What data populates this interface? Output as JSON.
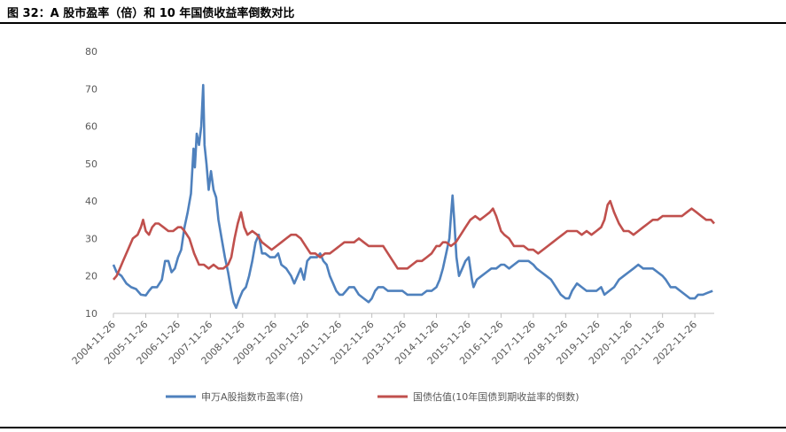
{
  "figure": {
    "title": "图 32：A 股市盈率（倍）和 10 年国债收益率倒数对比"
  },
  "chart_data": {
    "type": "line",
    "ylim": [
      10,
      80
    ],
    "yticks": [
      10,
      20,
      30,
      40,
      50,
      60,
      70,
      80
    ],
    "x_tick_labels": [
      "2004-11-26",
      "2005-11-26",
      "2006-11-26",
      "2007-11-26",
      "2008-11-26",
      "2009-11-26",
      "2010-11-26",
      "2011-11-26",
      "2012-11-26",
      "2013-11-26",
      "2014-11-26",
      "2015-11-26",
      "2016-11-26",
      "2017-11-26",
      "2018-11-26",
      "2019-11-26",
      "2020-11-26",
      "2021-11-26",
      "2022-11-26"
    ],
    "grid": false,
    "legend_position": "bottom",
    "series": [
      {
        "name": "申万A股指数市盈率(倍)",
        "color": "#4F81BD",
        "points": [
          [
            2004.9,
            23
          ],
          [
            2005.0,
            21
          ],
          [
            2005.15,
            20
          ],
          [
            2005.3,
            18
          ],
          [
            2005.45,
            17
          ],
          [
            2005.6,
            16.5
          ],
          [
            2005.75,
            15
          ],
          [
            2005.9,
            14.8
          ],
          [
            2006.0,
            16
          ],
          [
            2006.1,
            17
          ],
          [
            2006.25,
            17
          ],
          [
            2006.4,
            19
          ],
          [
            2006.5,
            24
          ],
          [
            2006.6,
            24
          ],
          [
            2006.7,
            21
          ],
          [
            2006.8,
            22
          ],
          [
            2006.9,
            25
          ],
          [
            2007.0,
            27
          ],
          [
            2007.1,
            33
          ],
          [
            2007.2,
            37
          ],
          [
            2007.3,
            42
          ],
          [
            2007.38,
            54
          ],
          [
            2007.42,
            49
          ],
          [
            2007.48,
            58
          ],
          [
            2007.55,
            55
          ],
          [
            2007.62,
            60
          ],
          [
            2007.68,
            71
          ],
          [
            2007.72,
            55
          ],
          [
            2007.78,
            50
          ],
          [
            2007.85,
            43
          ],
          [
            2007.92,
            48
          ],
          [
            2008.0,
            43
          ],
          [
            2008.08,
            41
          ],
          [
            2008.15,
            35
          ],
          [
            2008.25,
            30
          ],
          [
            2008.35,
            25
          ],
          [
            2008.45,
            21
          ],
          [
            2008.55,
            16
          ],
          [
            2008.62,
            13
          ],
          [
            2008.7,
            11.5
          ],
          [
            2008.8,
            14
          ],
          [
            2008.9,
            16
          ],
          [
            2009.0,
            17
          ],
          [
            2009.1,
            20
          ],
          [
            2009.2,
            24
          ],
          [
            2009.3,
            29
          ],
          [
            2009.4,
            31
          ],
          [
            2009.5,
            26
          ],
          [
            2009.6,
            26
          ],
          [
            2009.75,
            25
          ],
          [
            2009.9,
            25
          ],
          [
            2010.0,
            26
          ],
          [
            2010.1,
            23
          ],
          [
            2010.25,
            22
          ],
          [
            2010.4,
            20
          ],
          [
            2010.5,
            18
          ],
          [
            2010.6,
            20
          ],
          [
            2010.7,
            22
          ],
          [
            2010.8,
            19
          ],
          [
            2010.9,
            24
          ],
          [
            2011.0,
            25
          ],
          [
            2011.1,
            25
          ],
          [
            2011.2,
            25
          ],
          [
            2011.3,
            26
          ],
          [
            2011.4,
            24
          ],
          [
            2011.5,
            23
          ],
          [
            2011.6,
            20
          ],
          [
            2011.7,
            18
          ],
          [
            2011.8,
            16
          ],
          [
            2011.9,
            15
          ],
          [
            2012.0,
            15
          ],
          [
            2012.1,
            16
          ],
          [
            2012.2,
            17
          ],
          [
            2012.35,
            17
          ],
          [
            2012.5,
            15
          ],
          [
            2012.65,
            14
          ],
          [
            2012.8,
            13
          ],
          [
            2012.9,
            14
          ],
          [
            2013.0,
            16
          ],
          [
            2013.1,
            17
          ],
          [
            2013.25,
            17
          ],
          [
            2013.4,
            16
          ],
          [
            2013.55,
            16
          ],
          [
            2013.7,
            16
          ],
          [
            2013.85,
            16
          ],
          [
            2014.0,
            15
          ],
          [
            2014.15,
            15
          ],
          [
            2014.3,
            15
          ],
          [
            2014.45,
            15
          ],
          [
            2014.6,
            16
          ],
          [
            2014.75,
            16
          ],
          [
            2014.9,
            17
          ],
          [
            2015.0,
            19
          ],
          [
            2015.1,
            22
          ],
          [
            2015.2,
            26
          ],
          [
            2015.3,
            30
          ],
          [
            2015.35,
            36
          ],
          [
            2015.4,
            41.5
          ],
          [
            2015.45,
            35
          ],
          [
            2015.52,
            25
          ],
          [
            2015.6,
            20
          ],
          [
            2015.7,
            22
          ],
          [
            2015.8,
            24
          ],
          [
            2015.9,
            25
          ],
          [
            2016.0,
            19
          ],
          [
            2016.05,
            17
          ],
          [
            2016.15,
            19
          ],
          [
            2016.3,
            20
          ],
          [
            2016.45,
            21
          ],
          [
            2016.6,
            22
          ],
          [
            2016.75,
            22
          ],
          [
            2016.9,
            23
          ],
          [
            2017.0,
            23
          ],
          [
            2017.15,
            22
          ],
          [
            2017.3,
            23
          ],
          [
            2017.45,
            24
          ],
          [
            2017.6,
            24
          ],
          [
            2017.75,
            24
          ],
          [
            2017.9,
            23
          ],
          [
            2018.0,
            22
          ],
          [
            2018.15,
            21
          ],
          [
            2018.3,
            20
          ],
          [
            2018.45,
            19
          ],
          [
            2018.6,
            17
          ],
          [
            2018.75,
            15
          ],
          [
            2018.9,
            14
          ],
          [
            2019.0,
            14
          ],
          [
            2019.1,
            16
          ],
          [
            2019.25,
            18
          ],
          [
            2019.4,
            17
          ],
          [
            2019.55,
            16
          ],
          [
            2019.7,
            16
          ],
          [
            2019.85,
            16
          ],
          [
            2020.0,
            17
          ],
          [
            2020.1,
            15
          ],
          [
            2020.25,
            16
          ],
          [
            2020.4,
            17
          ],
          [
            2020.55,
            19
          ],
          [
            2020.7,
            20
          ],
          [
            2020.85,
            21
          ],
          [
            2021.0,
            22
          ],
          [
            2021.15,
            23
          ],
          [
            2021.3,
            22
          ],
          [
            2021.45,
            22
          ],
          [
            2021.6,
            22
          ],
          [
            2021.75,
            21
          ],
          [
            2021.9,
            20
          ],
          [
            2022.0,
            19
          ],
          [
            2022.15,
            17
          ],
          [
            2022.3,
            17
          ],
          [
            2022.45,
            16
          ],
          [
            2022.6,
            15
          ],
          [
            2022.75,
            14
          ],
          [
            2022.9,
            14
          ],
          [
            2023.0,
            15
          ],
          [
            2023.15,
            15
          ],
          [
            2023.3,
            15.5
          ],
          [
            2023.45,
            16
          ]
        ]
      },
      {
        "name": "国债估值(10年国债到期收益率的倒数)",
        "color": "#C0504D",
        "points": [
          [
            2004.9,
            19
          ],
          [
            2005.0,
            20
          ],
          [
            2005.1,
            22
          ],
          [
            2005.2,
            24
          ],
          [
            2005.35,
            27
          ],
          [
            2005.5,
            30
          ],
          [
            2005.65,
            31
          ],
          [
            2005.75,
            33
          ],
          [
            2005.82,
            35
          ],
          [
            2005.9,
            32
          ],
          [
            2006.0,
            31
          ],
          [
            2006.1,
            33
          ],
          [
            2006.2,
            34
          ],
          [
            2006.3,
            34
          ],
          [
            2006.45,
            33
          ],
          [
            2006.6,
            32
          ],
          [
            2006.75,
            32
          ],
          [
            2006.9,
            33
          ],
          [
            2007.0,
            33
          ],
          [
            2007.1,
            32
          ],
          [
            2007.25,
            30
          ],
          [
            2007.4,
            26
          ],
          [
            2007.55,
            23
          ],
          [
            2007.7,
            23
          ],
          [
            2007.85,
            22
          ],
          [
            2008.0,
            23
          ],
          [
            2008.15,
            22
          ],
          [
            2008.3,
            22
          ],
          [
            2008.45,
            23
          ],
          [
            2008.55,
            25
          ],
          [
            2008.65,
            30
          ],
          [
            2008.75,
            34
          ],
          [
            2008.85,
            37
          ],
          [
            2008.95,
            33
          ],
          [
            2009.05,
            31
          ],
          [
            2009.2,
            32
          ],
          [
            2009.35,
            31
          ],
          [
            2009.5,
            29
          ],
          [
            2009.65,
            28
          ],
          [
            2009.8,
            27
          ],
          [
            2009.95,
            28
          ],
          [
            2010.1,
            29
          ],
          [
            2010.25,
            30
          ],
          [
            2010.4,
            31
          ],
          [
            2010.55,
            31
          ],
          [
            2010.7,
            30
          ],
          [
            2010.85,
            28
          ],
          [
            2011.0,
            26
          ],
          [
            2011.15,
            26
          ],
          [
            2011.3,
            25
          ],
          [
            2011.45,
            26
          ],
          [
            2011.6,
            26
          ],
          [
            2011.75,
            27
          ],
          [
            2011.9,
            28
          ],
          [
            2012.05,
            29
          ],
          [
            2012.2,
            29
          ],
          [
            2012.35,
            29
          ],
          [
            2012.5,
            30
          ],
          [
            2012.65,
            29
          ],
          [
            2012.8,
            28
          ],
          [
            2012.95,
            28
          ],
          [
            2013.1,
            28
          ],
          [
            2013.25,
            28
          ],
          [
            2013.4,
            26
          ],
          [
            2013.55,
            24
          ],
          [
            2013.7,
            22
          ],
          [
            2013.85,
            22
          ],
          [
            2014.0,
            22
          ],
          [
            2014.15,
            23
          ],
          [
            2014.3,
            24
          ],
          [
            2014.45,
            24
          ],
          [
            2014.6,
            25
          ],
          [
            2014.75,
            26
          ],
          [
            2014.9,
            28
          ],
          [
            2015.0,
            28
          ],
          [
            2015.1,
            29
          ],
          [
            2015.2,
            29
          ],
          [
            2015.35,
            28
          ],
          [
            2015.5,
            29
          ],
          [
            2015.65,
            31
          ],
          [
            2015.8,
            33
          ],
          [
            2015.95,
            35
          ],
          [
            2016.1,
            36
          ],
          [
            2016.25,
            35
          ],
          [
            2016.4,
            36
          ],
          [
            2016.55,
            37
          ],
          [
            2016.65,
            38
          ],
          [
            2016.75,
            36
          ],
          [
            2016.9,
            32
          ],
          [
            2017.0,
            31
          ],
          [
            2017.15,
            30
          ],
          [
            2017.3,
            28
          ],
          [
            2017.45,
            28
          ],
          [
            2017.6,
            28
          ],
          [
            2017.75,
            27
          ],
          [
            2017.9,
            27
          ],
          [
            2018.05,
            26
          ],
          [
            2018.2,
            27
          ],
          [
            2018.35,
            28
          ],
          [
            2018.5,
            29
          ],
          [
            2018.65,
            30
          ],
          [
            2018.8,
            31
          ],
          [
            2018.95,
            32
          ],
          [
            2019.1,
            32
          ],
          [
            2019.25,
            32
          ],
          [
            2019.4,
            31
          ],
          [
            2019.55,
            32
          ],
          [
            2019.7,
            31
          ],
          [
            2019.85,
            32
          ],
          [
            2020.0,
            33
          ],
          [
            2020.1,
            35
          ],
          [
            2020.2,
            39
          ],
          [
            2020.28,
            40
          ],
          [
            2020.4,
            37
          ],
          [
            2020.55,
            34
          ],
          [
            2020.7,
            32
          ],
          [
            2020.85,
            32
          ],
          [
            2021.0,
            31
          ],
          [
            2021.15,
            32
          ],
          [
            2021.3,
            33
          ],
          [
            2021.45,
            34
          ],
          [
            2021.6,
            35
          ],
          [
            2021.75,
            35
          ],
          [
            2021.9,
            36
          ],
          [
            2022.05,
            36
          ],
          [
            2022.2,
            36
          ],
          [
            2022.35,
            36
          ],
          [
            2022.5,
            36
          ],
          [
            2022.65,
            37
          ],
          [
            2022.8,
            38
          ],
          [
            2022.95,
            37
          ],
          [
            2023.1,
            36
          ],
          [
            2023.25,
            35
          ],
          [
            2023.4,
            35
          ],
          [
            2023.5,
            34
          ]
        ]
      }
    ]
  }
}
